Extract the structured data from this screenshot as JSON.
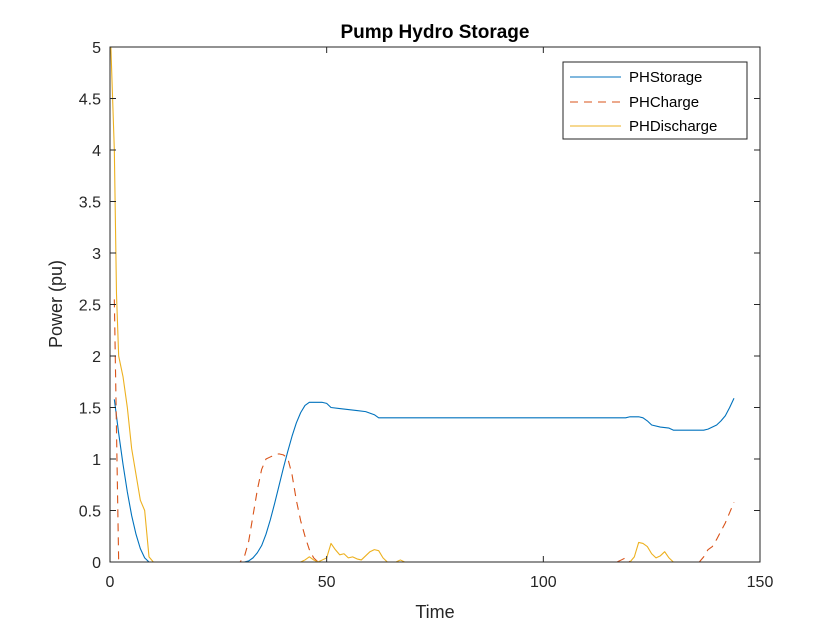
{
  "chart_data": {
    "type": "line",
    "title": "Pump Hydro Storage",
    "xlabel": "Time",
    "ylabel": "Power (pu)",
    "xlim": [
      0,
      150
    ],
    "ylim": [
      0,
      5
    ],
    "xticks": [
      0,
      50,
      100,
      150
    ],
    "xtick_labels": [
      "0",
      "50",
      "100",
      "150"
    ],
    "yticks": [
      0,
      0.5,
      1,
      1.5,
      2,
      2.5,
      3,
      3.5,
      4,
      4.5,
      5
    ],
    "ytick_labels": [
      "0",
      "0.5",
      "1",
      "1.5",
      "2",
      "2.5",
      "3",
      "3.5",
      "4",
      "4.5",
      "5"
    ],
    "grid": false,
    "legend_position": "top-right",
    "series": [
      {
        "name": "PHStorage",
        "color": "#0072BD",
        "dash": "solid",
        "points": [
          [
            1,
            1.58
          ],
          [
            2,
            1.25
          ],
          [
            3,
            0.95
          ],
          [
            4,
            0.68
          ],
          [
            5,
            0.45
          ],
          [
            6,
            0.27
          ],
          [
            7,
            0.13
          ],
          [
            8,
            0.04
          ],
          [
            9,
            0.0
          ],
          [
            10,
            0.0
          ],
          [
            20,
            0.0
          ],
          [
            30,
            0.0
          ],
          [
            31,
            0.0
          ],
          [
            32,
            0.01
          ],
          [
            33,
            0.04
          ],
          [
            34,
            0.09
          ],
          [
            35,
            0.16
          ],
          [
            36,
            0.27
          ],
          [
            37,
            0.41
          ],
          [
            38,
            0.57
          ],
          [
            39,
            0.74
          ],
          [
            40,
            0.91
          ],
          [
            41,
            1.07
          ],
          [
            42,
            1.22
          ],
          [
            43,
            1.35
          ],
          [
            44,
            1.45
          ],
          [
            45,
            1.52
          ],
          [
            46,
            1.55
          ],
          [
            47,
            1.55
          ],
          [
            48,
            1.55
          ],
          [
            49,
            1.55
          ],
          [
            50,
            1.54
          ],
          [
            51,
            1.5
          ],
          [
            53,
            1.49
          ],
          [
            55,
            1.48
          ],
          [
            57,
            1.47
          ],
          [
            59,
            1.46
          ],
          [
            61,
            1.43
          ],
          [
            62,
            1.4
          ],
          [
            70,
            1.4
          ],
          [
            80,
            1.4
          ],
          [
            90,
            1.4
          ],
          [
            100,
            1.4
          ],
          [
            110,
            1.4
          ],
          [
            119,
            1.4
          ],
          [
            120,
            1.41
          ],
          [
            122,
            1.41
          ],
          [
            123,
            1.4
          ],
          [
            124,
            1.37
          ],
          [
            125,
            1.33
          ],
          [
            127,
            1.31
          ],
          [
            129,
            1.3
          ],
          [
            130,
            1.28
          ],
          [
            135,
            1.28
          ],
          [
            137,
            1.28
          ],
          [
            138,
            1.29
          ],
          [
            140,
            1.33
          ],
          [
            141,
            1.37
          ],
          [
            142,
            1.42
          ],
          [
            143,
            1.5
          ],
          [
            144,
            1.59
          ]
        ]
      },
      {
        "name": "PHCharge",
        "color": "#D95319",
        "dash": "dashed",
        "points": [
          [
            1,
            2.55
          ],
          [
            2,
            0.0
          ],
          [
            10,
            0.0
          ],
          [
            20,
            0.0
          ],
          [
            30,
            0.0
          ],
          [
            31,
            0.05
          ],
          [
            32,
            0.2
          ],
          [
            33,
            0.45
          ],
          [
            34,
            0.7
          ],
          [
            35,
            0.9
          ],
          [
            36,
            1.0
          ],
          [
            37,
            1.02
          ],
          [
            38,
            1.04
          ],
          [
            39,
            1.05
          ],
          [
            40,
            1.04
          ],
          [
            41,
            1.01
          ],
          [
            42,
            0.85
          ],
          [
            43,
            0.6
          ],
          [
            44,
            0.4
          ],
          [
            45,
            0.25
          ],
          [
            46,
            0.12
          ],
          [
            47,
            0.04
          ],
          [
            48,
            0.0
          ],
          [
            60,
            0.0
          ],
          [
            80,
            0.0
          ],
          [
            100,
            0.0
          ],
          [
            117,
            0.0
          ],
          [
            118,
            0.02
          ],
          [
            119,
            0.04
          ],
          [
            120,
            0.0
          ],
          [
            130,
            0.0
          ],
          [
            136,
            0.0
          ],
          [
            137,
            0.05
          ],
          [
            138,
            0.12
          ],
          [
            139,
            0.15
          ],
          [
            140,
            0.22
          ],
          [
            141,
            0.3
          ],
          [
            142,
            0.38
          ],
          [
            143,
            0.48
          ],
          [
            144,
            0.58
          ]
        ]
      },
      {
        "name": "PHDischarge",
        "color": "#EDB120",
        "dash": "solid",
        "points": [
          [
            0.2,
            5.0
          ],
          [
            1,
            4.0
          ],
          [
            1.5,
            2.6
          ],
          [
            2,
            2.0
          ],
          [
            3,
            1.8
          ],
          [
            4,
            1.5
          ],
          [
            5,
            1.1
          ],
          [
            6,
            0.85
          ],
          [
            7,
            0.6
          ],
          [
            8,
            0.5
          ],
          [
            9,
            0.05
          ],
          [
            10,
            0.0
          ],
          [
            20,
            0.0
          ],
          [
            40,
            0.0
          ],
          [
            44,
            0.0
          ],
          [
            45,
            0.02
          ],
          [
            46,
            0.05
          ],
          [
            47,
            0.02
          ],
          [
            48,
            0.0
          ],
          [
            49,
            0.02
          ],
          [
            50,
            0.04
          ],
          [
            51,
            0.18
          ],
          [
            52,
            0.12
          ],
          [
            53,
            0.07
          ],
          [
            54,
            0.08
          ],
          [
            55,
            0.04
          ],
          [
            56,
            0.05
          ],
          [
            57,
            0.03
          ],
          [
            58,
            0.02
          ],
          [
            59,
            0.06
          ],
          [
            60,
            0.1
          ],
          [
            61,
            0.12
          ],
          [
            62,
            0.11
          ],
          [
            63,
            0.04
          ],
          [
            64,
            0.0
          ],
          [
            65,
            0.0
          ],
          [
            66,
            0.0
          ],
          [
            67,
            0.02
          ],
          [
            68,
            0.0
          ],
          [
            80,
            0.0
          ],
          [
            100,
            0.0
          ],
          [
            118,
            0.0
          ],
          [
            120,
            0.0
          ],
          [
            121,
            0.05
          ],
          [
            122,
            0.19
          ],
          [
            123,
            0.18
          ],
          [
            124,
            0.15
          ],
          [
            125,
            0.08
          ],
          [
            126,
            0.04
          ],
          [
            127,
            0.06
          ],
          [
            128,
            0.1
          ],
          [
            129,
            0.04
          ],
          [
            130,
            0.0
          ],
          [
            140,
            0.0
          ],
          [
            144,
            0.0
          ]
        ]
      }
    ]
  }
}
